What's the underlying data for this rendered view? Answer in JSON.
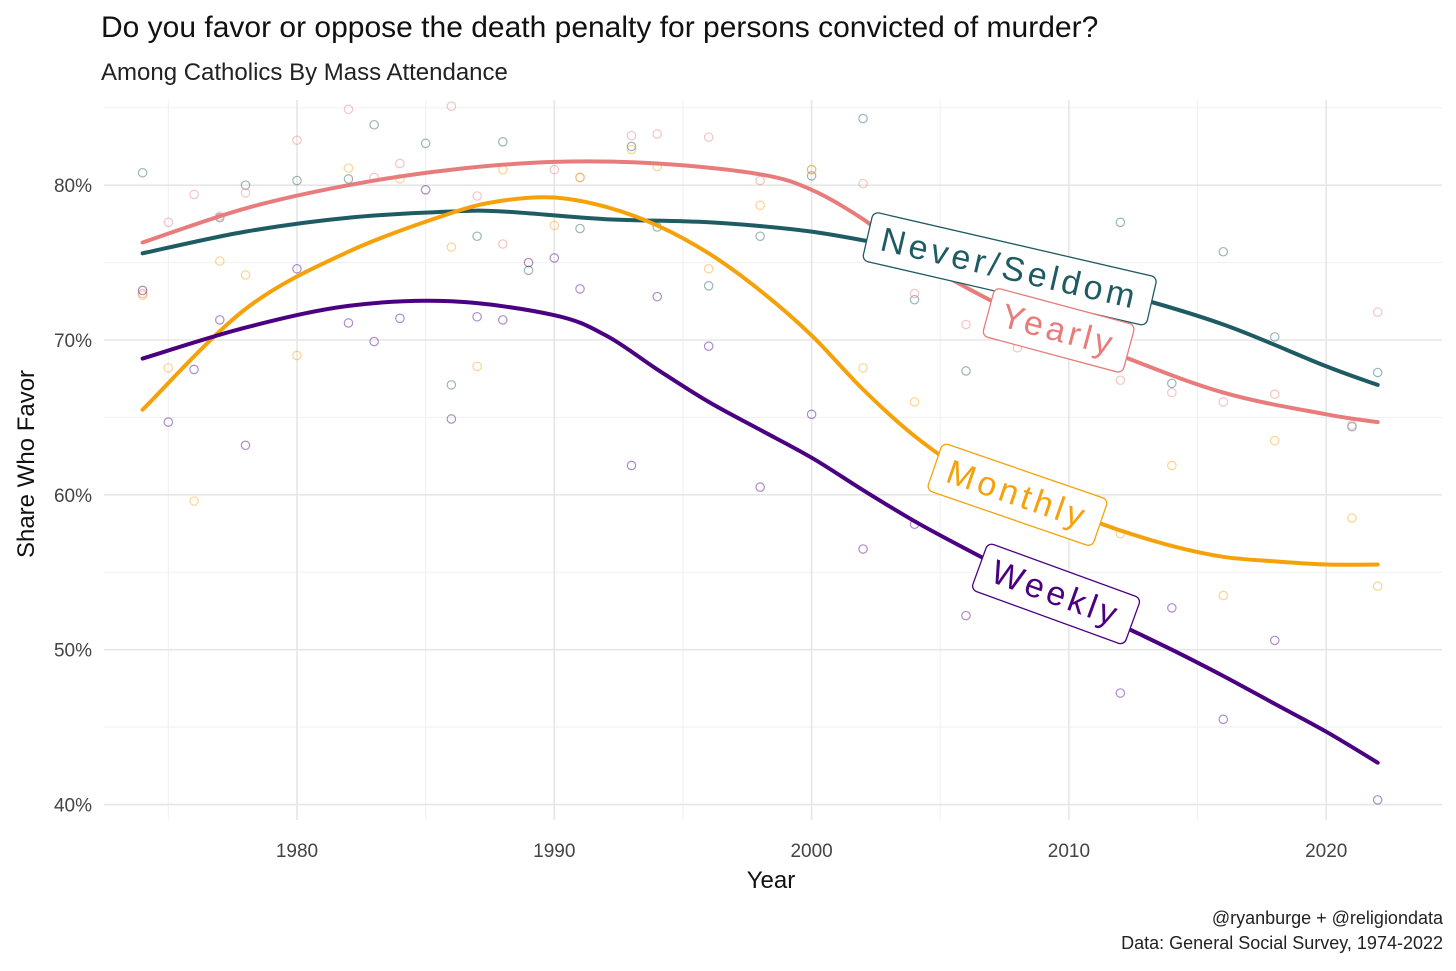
{
  "chart_data": {
    "type": "line",
    "title": "Do you favor or oppose the death penalty for persons convicted of murder?",
    "subtitle": "Among Catholics By Mass Attendance",
    "xlabel": "Year",
    "ylabel": "Share Who Favor",
    "xlim": [
      1972.5,
      2024.5
    ],
    "ylim": [
      0.39,
      0.855
    ],
    "x_ticks": [
      1980,
      1990,
      2000,
      2010,
      2020
    ],
    "x_minor": [
      1975,
      1985,
      1995,
      2005,
      2015
    ],
    "y_ticks": [
      0.4,
      0.5,
      0.6,
      0.7,
      0.8
    ],
    "y_minor": [
      0.45,
      0.55,
      0.65,
      0.75,
      0.85
    ],
    "y_tick_labels": [
      "40%",
      "50%",
      "60%",
      "70%",
      "80%"
    ],
    "grid": true,
    "legend": "direct labels on lines",
    "series": [
      {
        "name": "Never/Seldom",
        "color": "#1e5b63",
        "label_at": 2007.7,
        "label_angle": 13,
        "smooth_x": [
          1974,
          1978,
          1982,
          1986,
          1988,
          1992,
          1996,
          2000,
          2004,
          2008,
          2012,
          2016,
          2020,
          2022
        ],
        "smooth_y": [
          0.756,
          0.77,
          0.779,
          0.783,
          0.783,
          0.778,
          0.776,
          0.77,
          0.758,
          0.745,
          0.73,
          0.71,
          0.683,
          0.671
        ],
        "points_x": [
          1974,
          1977,
          1978,
          1980,
          1982,
          1983,
          1985,
          1986,
          1987,
          1988,
          1989,
          1991,
          1993,
          1994,
          1996,
          1998,
          2000,
          2002,
          2004,
          2006,
          2008,
          2010,
          2012,
          2014,
          2016,
          2018,
          2021,
          2022
        ],
        "points_y": [
          0.808,
          0.779,
          0.8,
          0.803,
          0.804,
          0.839,
          0.827,
          0.671,
          0.767,
          0.828,
          0.745,
          0.772,
          0.825,
          0.773,
          0.735,
          0.767,
          0.806,
          0.843,
          0.726,
          0.68,
          0.72,
          0.74,
          0.776,
          0.672,
          0.757,
          0.702,
          0.644,
          0.679
        ]
      },
      {
        "name": "Yearly",
        "color": "#e87c7c",
        "label_at": 2009.6,
        "label_angle": 15,
        "smooth_x": [
          1974,
          1978,
          1982,
          1986,
          1990,
          1994,
          1998,
          2000,
          2002,
          2004,
          2008,
          2012,
          2016,
          2020,
          2022
        ],
        "smooth_y": [
          0.763,
          0.785,
          0.8,
          0.81,
          0.815,
          0.814,
          0.807,
          0.797,
          0.778,
          0.753,
          0.717,
          0.69,
          0.666,
          0.652,
          0.647
        ],
        "points_x": [
          1974,
          1975,
          1976,
          1977,
          1978,
          1980,
          1982,
          1983,
          1984,
          1986,
          1987,
          1988,
          1990,
          1991,
          1993,
          1994,
          1996,
          1998,
          2000,
          2002,
          2004,
          2006,
          2008,
          2012,
          2014,
          2016,
          2018,
          2021,
          2022
        ],
        "points_y": [
          0.73,
          0.776,
          0.794,
          0.78,
          0.795,
          0.829,
          0.849,
          0.805,
          0.814,
          0.851,
          0.793,
          0.762,
          0.81,
          0.805,
          0.832,
          0.833,
          0.831,
          0.803,
          0.81,
          0.801,
          0.73,
          0.71,
          0.695,
          0.674,
          0.666,
          0.66,
          0.665,
          0.645,
          0.718
        ]
      },
      {
        "name": "Monthly",
        "color": "#f5a20a",
        "label_at": 2008.0,
        "label_angle": 19,
        "smooth_x": [
          1974,
          1978,
          1982,
          1986,
          1988,
          1990,
          1992,
          1994,
          1996,
          1998,
          2000,
          2002,
          2004,
          2006,
          2008,
          2010,
          2012,
          2014,
          2016,
          2018,
          2020,
          2022
        ],
        "smooth_y": [
          0.655,
          0.72,
          0.757,
          0.782,
          0.79,
          0.792,
          0.786,
          0.774,
          0.756,
          0.732,
          0.703,
          0.668,
          0.638,
          0.615,
          0.6,
          0.589,
          0.577,
          0.567,
          0.56,
          0.557,
          0.555,
          0.555
        ],
        "points_x": [
          1974,
          1975,
          1976,
          1977,
          1978,
          1980,
          1982,
          1984,
          1986,
          1987,
          1988,
          1990,
          1991,
          1993,
          1994,
          1996,
          1998,
          2000,
          2002,
          2004,
          2006,
          2008,
          2010,
          2012,
          2014,
          2016,
          2018,
          2021,
          2022
        ],
        "points_y": [
          0.729,
          0.682,
          0.596,
          0.751,
          0.742,
          0.69,
          0.811,
          0.804,
          0.76,
          0.683,
          0.81,
          0.774,
          0.805,
          0.823,
          0.812,
          0.746,
          0.787,
          0.81,
          0.682,
          0.66,
          0.617,
          0.6,
          0.582,
          0.575,
          0.619,
          0.535,
          0.635,
          0.585,
          0.541
        ]
      },
      {
        "name": "Weekly",
        "color": "#4b0082",
        "label_at": 2009.5,
        "label_angle": 20,
        "smooth_x": [
          1974,
          1978,
          1982,
          1986,
          1990,
          1992,
          1994,
          1996,
          1998,
          2000,
          2002,
          2004,
          2006,
          2008,
          2010,
          2012,
          2014,
          2016,
          2018,
          2020,
          2022
        ],
        "smooth_y": [
          0.688,
          0.708,
          0.722,
          0.725,
          0.716,
          0.703,
          0.681,
          0.66,
          0.642,
          0.624,
          0.603,
          0.583,
          0.565,
          0.548,
          0.532,
          0.516,
          0.5,
          0.483,
          0.465,
          0.447,
          0.427
        ],
        "points_x": [
          1974,
          1975,
          1976,
          1977,
          1978,
          1980,
          1982,
          1983,
          1984,
          1985,
          1986,
          1987,
          1988,
          1989,
          1990,
          1991,
          1993,
          1994,
          1996,
          1998,
          2000,
          2002,
          2004,
          2006,
          2008,
          2012,
          2014,
          2016,
          2018,
          2022
        ],
        "points_y": [
          0.732,
          0.647,
          0.681,
          0.713,
          0.632,
          0.746,
          0.711,
          0.699,
          0.714,
          0.797,
          0.649,
          0.715,
          0.713,
          0.75,
          0.753,
          0.733,
          0.619,
          0.728,
          0.696,
          0.605,
          0.652,
          0.565,
          0.581,
          0.522,
          0.586,
          0.472,
          0.527,
          0.455,
          0.506,
          0.403
        ]
      }
    ]
  },
  "caption": {
    "handle": "@ryanburge + @religiondata",
    "source": "Data: General Social Survey, 1974-2022"
  }
}
